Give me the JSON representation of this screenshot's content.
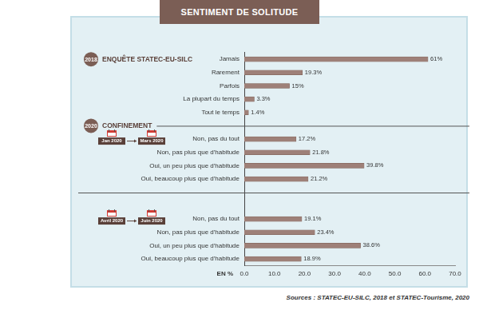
{
  "chart_data": {
    "type": "bar",
    "orientation": "horizontal",
    "title": "SENTIMENT DE SOLITUDE",
    "x_label": "EN %",
    "source": "Sources : STATEC-EU-SILC, 2018 et STATEC-Tourisme, 2020",
    "color": "#9e8078",
    "xlim": [
      0,
      70
    ],
    "xticks": [
      {
        "value": 0,
        "label": "0.0"
      },
      {
        "value": 10,
        "label": "10.0"
      },
      {
        "value": 20,
        "label": "20.0"
      },
      {
        "value": 30,
        "label": "30.0"
      },
      {
        "value": 40,
        "label": "40.0"
      },
      {
        "value": 50,
        "label": "50.0"
      },
      {
        "value": 60,
        "label": "60.0"
      },
      {
        "value": 70,
        "label": "70.0"
      }
    ],
    "grid": false,
    "data_labels": true,
    "sections": [
      {
        "year": "2018",
        "title": "ENQUÊTE STATEC-EU-SILC",
        "categories": [
          "Jamais",
          "Rarement",
          "Parfois",
          "La plupart du temps",
          "Tout le temps"
        ],
        "values": [
          61,
          19.3,
          15,
          3.3,
          1.4
        ],
        "value_labels": [
          "61%",
          "19.3%",
          "15%",
          "3.3%",
          "1.4%"
        ]
      },
      {
        "year": "2020",
        "title": "CONFINEMENT",
        "period": [
          "Jan 2020",
          "Mars 2020"
        ],
        "categories": [
          "Non, pas du tout",
          "Non, pas plus que d'habitude",
          "Oui, un peu plus que d'habitude",
          "Oui, beaucoup plus que d'habitude"
        ],
        "values": [
          17.2,
          21.8,
          39.8,
          21.2
        ],
        "value_labels": [
          "17.2%",
          "21.8%",
          "39.8%",
          "21.2%"
        ]
      },
      {
        "period": [
          "Avril 2020",
          "Juin 2020"
        ],
        "categories": [
          "Non, pas du tout",
          "Non, pas plus que d'habitude",
          "Oui, un peu plus que d'habitude",
          "Oui, beaucoup plus que d'habitude"
        ],
        "values": [
          19.1,
          23.4,
          38.6,
          18.9
        ],
        "value_labels": [
          "19.1%",
          "23.4%",
          "38.6%",
          "18.9%"
        ]
      }
    ]
  }
}
